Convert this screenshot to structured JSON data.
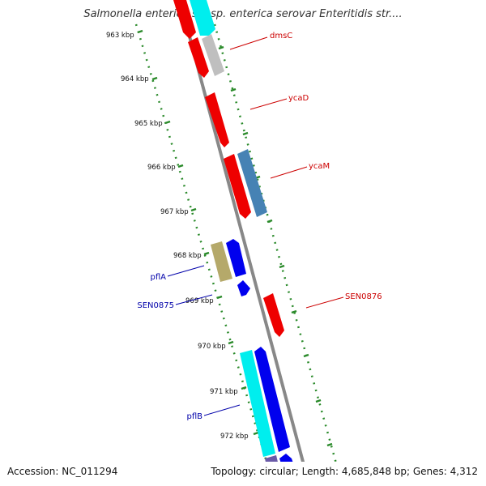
{
  "title": "Salmonella enterica subsp. enterica serovar Enteritidis str....",
  "footer": {
    "accession": "Accession: NC_011294",
    "stats": "Topology: circular; Length: 4,685,848 bp; Genes: 4,312"
  },
  "ruler_ticks": [
    "963 kbp",
    "964 kbp",
    "965 kbp",
    "966 kbp",
    "967 kbp",
    "968 kbp",
    "969 kbp",
    "970 kbp",
    "971 kbp",
    "972 kbp"
  ],
  "gene_labels": [
    {
      "name": "dmsC",
      "color": "#cc0000"
    },
    {
      "name": "ycaD",
      "color": "#cc0000"
    },
    {
      "name": "ycaM",
      "color": "#cc0000"
    },
    {
      "name": "SEN0876",
      "color": "#cc0000"
    },
    {
      "name": "pflA",
      "color": "#0000aa"
    },
    {
      "name": "SEN0875",
      "color": "#0000aa"
    },
    {
      "name": "pflB",
      "color": "#0000aa"
    }
  ],
  "colors": {
    "red": "#ee0000",
    "gray": "#bfbfbf",
    "cyan": "#00eeee",
    "steelblue": "#4682b4",
    "blue": "#0000ee",
    "olive": "#b5a96a",
    "purple": "#6a5aa8",
    "backbone": "#888888",
    "dots": "#2a8a2a"
  }
}
